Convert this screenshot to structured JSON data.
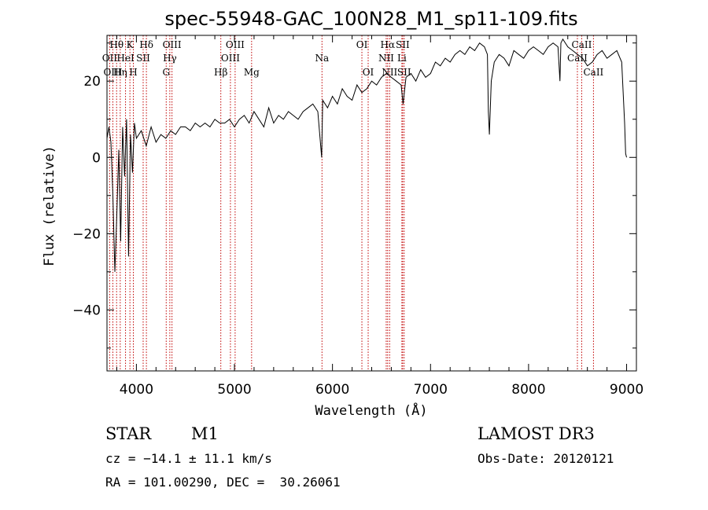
{
  "chart_data": {
    "type": "line",
    "title": "spec-55948-GAC_100N28_M1_sp11-109.fits",
    "xlabel": "Wavelength (Å)",
    "ylabel": "Flux (relative)",
    "xlim": [
      3700,
      9100
    ],
    "ylim": [
      -56,
      32
    ],
    "xticks": [
      4000,
      5000,
      6000,
      7000,
      8000,
      9000
    ],
    "xtick_labels": [
      "4000",
      "5000",
      "6000",
      "7000",
      "8000",
      "9000"
    ],
    "yticks": [
      -40,
      -20,
      0,
      20
    ],
    "ytick_labels": [
      "−40",
      "−20",
      "0",
      "20"
    ],
    "line_color": "#000000",
    "marker_color": "#c00000",
    "spectrum": {
      "x": [
        3700,
        3720,
        3740,
        3760,
        3780,
        3800,
        3820,
        3840,
        3860,
        3880,
        3900,
        3920,
        3940,
        3960,
        3980,
        4000,
        4050,
        4100,
        4150,
        4200,
        4250,
        4300,
        4350,
        4400,
        4450,
        4500,
        4550,
        4600,
        4650,
        4700,
        4750,
        4800,
        4850,
        4900,
        4950,
        5000,
        5050,
        5100,
        5150,
        5200,
        5250,
        5300,
        5350,
        5400,
        5450,
        5500,
        5550,
        5600,
        5650,
        5700,
        5750,
        5800,
        5850,
        5890,
        5900,
        5950,
        6000,
        6050,
        6100,
        6150,
        6200,
        6250,
        6300,
        6350,
        6400,
        6450,
        6500,
        6550,
        6600,
        6650,
        6700,
        6720,
        6750,
        6800,
        6850,
        6900,
        6950,
        7000,
        7050,
        7100,
        7150,
        7200,
        7250,
        7300,
        7350,
        7400,
        7450,
        7500,
        7550,
        7580,
        7590,
        7600,
        7620,
        7650,
        7700,
        7750,
        7800,
        7850,
        7900,
        7950,
        8000,
        8050,
        8100,
        8150,
        8200,
        8250,
        8300,
        8320,
        8330,
        8350,
        8400,
        8450,
        8500,
        8550,
        8600,
        8650,
        8700,
        8750,
        8800,
        8850,
        8900,
        8950,
        8980,
        8990,
        9000
      ],
      "y": [
        5,
        8,
        4,
        -10,
        -30,
        -15,
        2,
        -22,
        8,
        -5,
        10,
        -26,
        6,
        -4,
        9,
        5,
        7,
        3,
        8,
        4,
        6,
        5,
        7,
        6,
        8,
        8,
        7,
        9,
        8,
        9,
        8,
        10,
        9,
        9,
        10,
        8,
        10,
        11,
        9,
        12,
        10,
        8,
        13,
        9,
        11,
        10,
        12,
        11,
        10,
        12,
        13,
        14,
        12,
        0,
        15,
        13,
        16,
        14,
        18,
        16,
        15,
        19,
        17,
        18,
        20,
        19,
        21,
        22,
        21,
        20,
        19,
        14,
        21,
        22,
        20,
        23,
        21,
        22,
        25,
        24,
        26,
        25,
        27,
        28,
        27,
        29,
        28,
        30,
        29,
        27,
        12,
        6,
        20,
        25,
        27,
        26,
        24,
        28,
        27,
        26,
        28,
        29,
        28,
        27,
        29,
        30,
        29,
        20,
        30,
        31,
        29,
        28,
        27,
        26,
        24,
        25,
        27,
        28,
        26,
        27,
        28,
        25,
        9,
        1,
        0
      ]
    },
    "lines": [
      {
        "name": "Hθ",
        "x": 3798,
        "row": 1
      },
      {
        "name": "OII",
        "x": 3727,
        "row": 2
      },
      {
        "name": "OIII",
        "x": 3760,
        "row": 3
      },
      {
        "name": "Hη",
        "x": 3835,
        "row": 3
      },
      {
        "name": "HeI",
        "x": 3889,
        "row": 2
      },
      {
        "name": "K",
        "x": 3934,
        "row": 1
      },
      {
        "name": "SII",
        "x": 4069,
        "row": 2
      },
      {
        "name": "H",
        "x": 3969,
        "row": 3
      },
      {
        "name": "Hδ",
        "x": 4102,
        "row": 1
      },
      {
        "name": "OIII",
        "x": 4363,
        "row": 1
      },
      {
        "name": "Hγ",
        "x": 4341,
        "row": 2
      },
      {
        "name": "G",
        "x": 4304,
        "row": 3
      },
      {
        "name": "Hβ",
        "x": 4861,
        "row": 3
      },
      {
        "name": "OIII",
        "x": 5007,
        "row": 1
      },
      {
        "name": "OIII",
        "x": 4959,
        "row": 2
      },
      {
        "name": "Mg",
        "x": 5175,
        "row": 3
      },
      {
        "name": "Na",
        "x": 5893,
        "row": 2
      },
      {
        "name": "OI",
        "x": 6300,
        "row": 1
      },
      {
        "name": "OI",
        "x": 6364,
        "row": 3
      },
      {
        "name": "Hα",
        "x": 6563,
        "row": 1
      },
      {
        "name": "SII",
        "x": 6716,
        "row": 1
      },
      {
        "name": "NII",
        "x": 6548,
        "row": 2
      },
      {
        "name": "Li",
        "x": 6708,
        "row": 2
      },
      {
        "name": "NII",
        "x": 6583,
        "row": 3
      },
      {
        "name": "SII",
        "x": 6731,
        "row": 3
      },
      {
        "name": "CaII",
        "x": 8542,
        "row": 1
      },
      {
        "name": "CaII",
        "x": 8498,
        "row": 2
      },
      {
        "name": "CaII",
        "x": 8662,
        "row": 3
      }
    ]
  },
  "info": {
    "class": "STAR",
    "subclass": "M1",
    "survey": "LAMOST DR3",
    "cz": "cz = −14.1 ± 11.1 km/s",
    "obs_date": "Obs-Date: 20120121",
    "radec": "RA = 101.00290, DEC =  30.26061"
  }
}
